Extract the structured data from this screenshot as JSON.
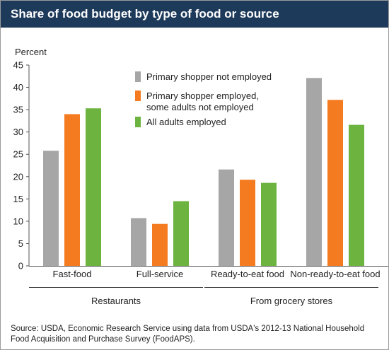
{
  "title": "Share of food budget by type of food or source",
  "source_note": "Source: USDA, Economic Research Service using data from USDA's 2012-13 National Household Food Acquisition and Purchase Survey (FoodAPS).",
  "chart_data": {
    "type": "bar",
    "ylabel": "Percent",
    "ylim": [
      0,
      45
    ],
    "yticks": [
      0,
      5,
      10,
      15,
      20,
      25,
      30,
      35,
      40,
      45
    ],
    "grid": false,
    "legend_position": "top-center",
    "categories": [
      "Fast-food",
      "Full-service",
      "Ready-to-eat food",
      "Non-ready-to-eat food"
    ],
    "category_groups": [
      {
        "label": "Restaurants",
        "categories": [
          "Fast-food",
          "Full-service"
        ]
      },
      {
        "label": "From grocery stores",
        "categories": [
          "Ready-to-eat food",
          "Non-ready-to-eat food"
        ]
      }
    ],
    "series": [
      {
        "name": "Primary shopper not employed",
        "color": "#a6a6a6",
        "values": [
          25.8,
          10.7,
          21.6,
          42.1
        ]
      },
      {
        "name": "Primary shopper employed, some adults not employed",
        "color": "#f47b20",
        "values": [
          34.0,
          9.4,
          19.3,
          37.2
        ]
      },
      {
        "name": "All adults employed",
        "color": "#6cb33f",
        "values": [
          35.3,
          14.5,
          18.6,
          31.6
        ]
      }
    ]
  }
}
